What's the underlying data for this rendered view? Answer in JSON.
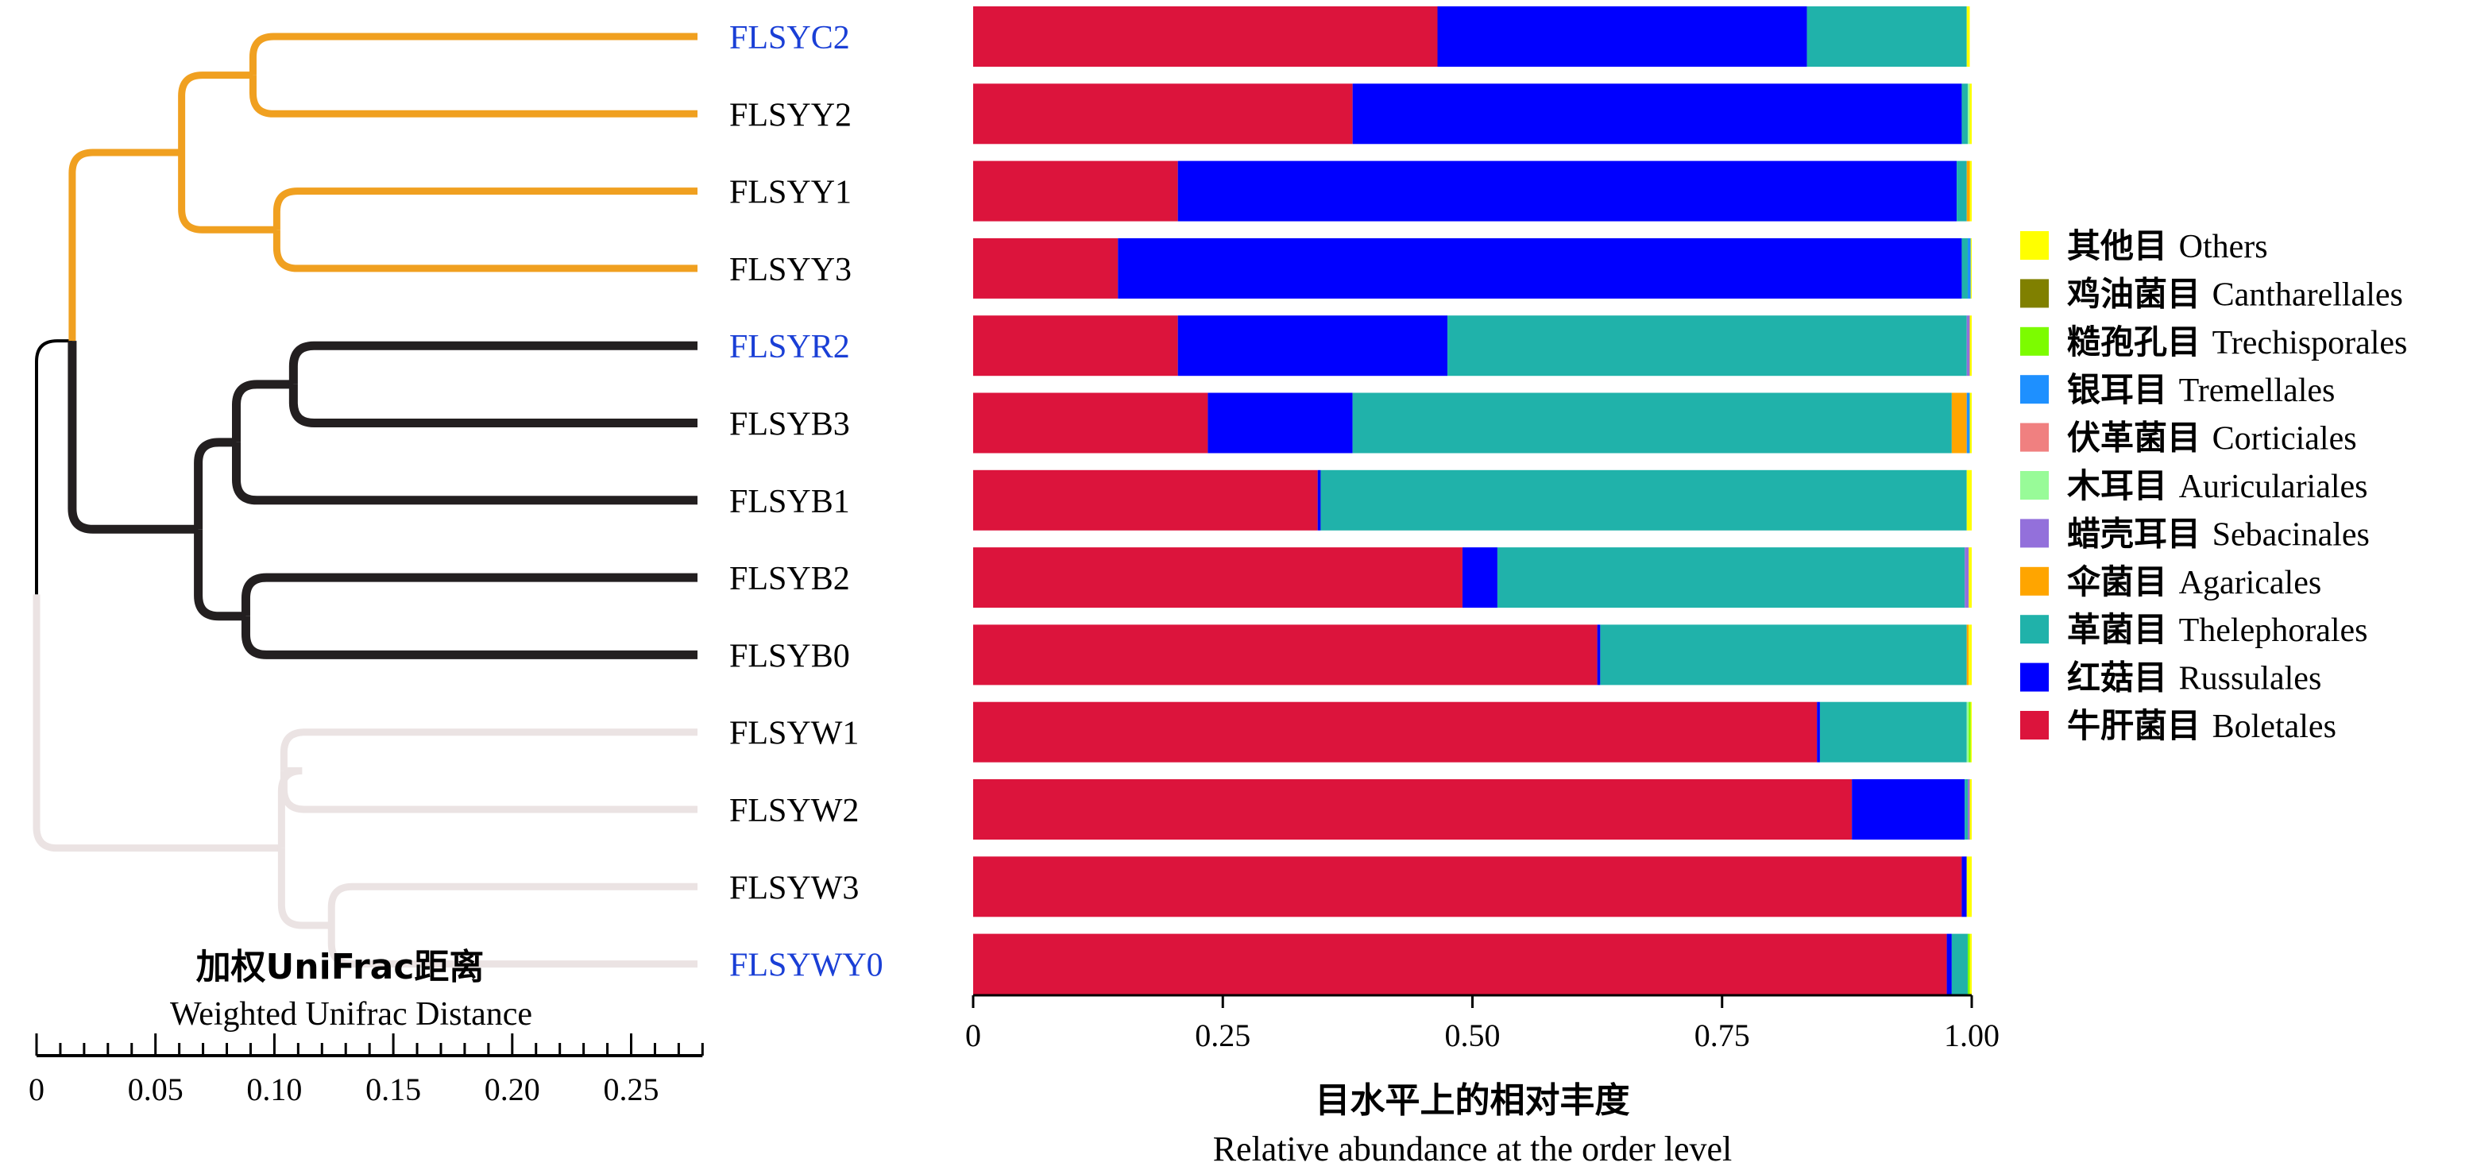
{
  "chart_data": [
    {
      "type": "dendrogram",
      "samples": [
        "FLSYC2",
        "FLSYY2",
        "FLSYY1",
        "FLSYY3",
        "FLSYR2",
        "FLSYB3",
        "FLSYB1",
        "FLSYB2",
        "FLSYB0",
        "FLSYW1",
        "FLSYW2",
        "FLSYW3",
        "FLSYWY0"
      ],
      "highlighted_samples": [
        "FLSYC2",
        "FLSYR2",
        "FLSYWY0"
      ],
      "highlight_color": "#1a3fd6",
      "clusters": [
        {
          "samples": [
            "FLSYC2",
            "FLSYY2",
            "FLSYY1",
            "FLSYY3"
          ],
          "color": "#f0a020"
        },
        {
          "samples": [
            "FLSYR2",
            "FLSYB3",
            "FLSYB1",
            "FLSYB2",
            "FLSYB0"
          ],
          "color": "#231f20"
        },
        {
          "samples": [
            "FLSYW1",
            "FLSYW2",
            "FLSYW3",
            "FLSYWY0"
          ],
          "color": "#ebe3e3"
        }
      ],
      "root_color": "#000000",
      "xlabel_cn": "加权UniFrac距离",
      "xlabel": "Weighted Unifrac Distance",
      "xticks": [
        "0",
        "0.05",
        "0.10",
        "0.15",
        "0.20",
        "0.25"
      ],
      "xlim": [
        0,
        0.28
      ]
    },
    {
      "type": "bar",
      "orientation": "horizontal",
      "stacked": true,
      "categories": [
        "FLSYC2",
        "FLSYY2",
        "FLSYY1",
        "FLSYY3",
        "FLSYR2",
        "FLSYB3",
        "FLSYB1",
        "FLSYB2",
        "FLSYB0",
        "FLSYW1",
        "FLSYW2",
        "FLSYW3",
        "FLSYWY0"
      ],
      "series": [
        {
          "name": "牛肝菌目 Boletales",
          "color": "#dc143c",
          "values": [
            0.465,
            0.38,
            0.205,
            0.145,
            0.205,
            0.235,
            0.345,
            0.49,
            0.625,
            0.845,
            0.88,
            0.99,
            0.975
          ]
        },
        {
          "name": "红菇目 Russulales",
          "color": "#0000ff",
          "values": [
            0.37,
            0.61,
            0.78,
            0.845,
            0.27,
            0.145,
            0.003,
            0.035,
            0.003,
            0.003,
            0.113,
            0.005,
            0.005
          ]
        },
        {
          "name": "革菌目 Thelephorales",
          "color": "#20b2aa",
          "values": [
            0.16,
            0.006,
            0.01,
            0.006,
            0.52,
            0.6,
            0.647,
            0.468,
            0.367,
            0.147,
            0.003,
            0.0,
            0.016
          ]
        },
        {
          "name": "伞菌目 Agaricales",
          "color": "#ffa500",
          "values": [
            0.0,
            0.0,
            0.003,
            0.0,
            0.0,
            0.015,
            0.0,
            0.0,
            0.002,
            0.0,
            0.0,
            0.0,
            0.0
          ]
        },
        {
          "name": "蜡壳耳目 Sebacinales",
          "color": "#9370db",
          "values": [
            0.0,
            0.0,
            0.0,
            0.0,
            0.003,
            0.0,
            0.0,
            0.004,
            0.0,
            0.0,
            0.002,
            0.0,
            0.0
          ]
        },
        {
          "name": "木耳目 Auriculariales",
          "color": "#98fb98",
          "values": [
            0.0,
            0.002,
            0.0,
            0.0,
            0.0,
            0.0,
            0.0,
            0.0,
            0.0,
            0.002,
            0.0,
            0.0,
            0.0
          ]
        },
        {
          "name": "伏革菌目 Corticiales",
          "color": "#f08080",
          "values": [
            0.0,
            0.0,
            0.0,
            0.0,
            0.0,
            0.0,
            0.0,
            0.0,
            0.0,
            0.0,
            0.0,
            0.0,
            0.0
          ]
        },
        {
          "name": "银耳目 Tremellales",
          "color": "#1e90ff",
          "values": [
            0.0,
            0.0,
            0.0,
            0.003,
            0.0,
            0.003,
            0.0,
            0.0,
            0.0,
            0.0,
            0.0,
            0.0,
            0.0
          ]
        },
        {
          "name": "糙孢孔目 Trechisporales",
          "color": "#7cfc00",
          "values": [
            0.0,
            0.0,
            0.0,
            0.0,
            0.0,
            0.0,
            0.0,
            0.0,
            0.0,
            0.002,
            0.0,
            0.0,
            0.002
          ]
        },
        {
          "name": "鸡油菌目 Cantharellales",
          "color": "#808000",
          "values": [
            0.0,
            0.0,
            0.0,
            0.0,
            0.0,
            0.0,
            0.0,
            0.0,
            0.0,
            0.0,
            0.0,
            0.0,
            0.0
          ]
        },
        {
          "name": "其他目 Others",
          "color": "#ffff00",
          "values": [
            0.003,
            0.002,
            0.002,
            0.001,
            0.002,
            0.002,
            0.005,
            0.003,
            0.003,
            0.001,
            0.002,
            0.005,
            0.002
          ]
        }
      ],
      "xlabel_cn": "目水平上的相对丰度",
      "xlabel": "Relative abundance at the order level",
      "xticks": [
        "0",
        "0.25",
        "0.50",
        "0.75",
        "1.00"
      ],
      "xlim": [
        0,
        1
      ],
      "legend_position": "right",
      "legend_order": [
        "其他目 Others",
        "鸡油菌目 Cantharellales",
        "糙孢孔目 Trechisporales",
        "银耳目 Tremellales",
        "伏革菌目 Corticiales",
        "木耳目 Auriculariales",
        "蜡壳耳目 Sebacinales",
        "伞菌目 Agaricales",
        "革菌目 Thelephorales",
        "红菇目 Russulales",
        "牛肝菌目 Boletales"
      ]
    }
  ]
}
